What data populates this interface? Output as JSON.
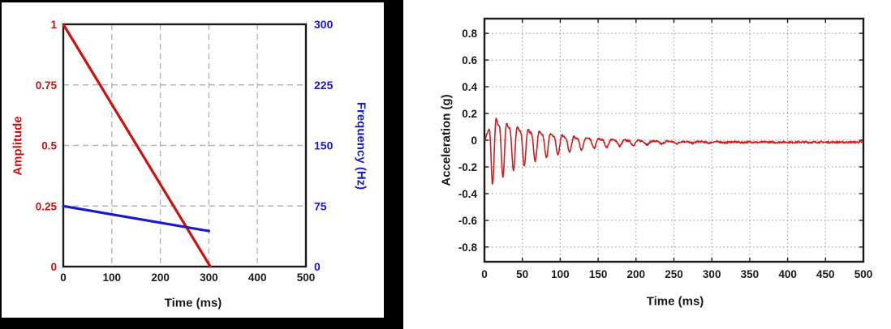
{
  "palette": {
    "frame_black": "#000000",
    "axis_line": "#1a1a1a",
    "tick_text_black": "#1a1a1a",
    "left_grid": "#b5b5b5",
    "right_grid": "#a9a9a9",
    "amplitude_red": "#cc1111",
    "frequency_blue": "#1a1acc",
    "acceleration_red": "#cc2020",
    "white": "#ffffff"
  },
  "chart_data": [
    {
      "type": "line",
      "title": "",
      "xlabel": "Time (ms)",
      "ylabel_left": "Amplitude",
      "ylabel_right": "Frequency (Hz)",
      "xlim": [
        0,
        500
      ],
      "ylim_left": [
        0,
        1
      ],
      "ylim_right": [
        0,
        300
      ],
      "x_ticks": [
        0,
        100,
        200,
        300,
        400,
        500
      ],
      "y_ticks_left": [
        0,
        0.25,
        0.5,
        0.75,
        1
      ],
      "y_ticks_right": [
        0,
        75,
        150,
        225,
        300
      ],
      "grid_x": [
        100,
        200,
        300,
        400
      ],
      "grid_y_left": [
        0.25,
        0.5,
        0.75
      ],
      "grid_style": "dashed",
      "legend": "none",
      "series": [
        {
          "name": "Amplitude",
          "axis": "left",
          "color": "#cc1111",
          "linewidth": 3.2,
          "points": [
            [
              0,
              1.0
            ],
            [
              303,
              0.0
            ]
          ]
        },
        {
          "name": "Frequency (Hz)",
          "axis": "right",
          "color": "#1a1acc",
          "linewidth": 3.2,
          "points": [
            [
              0,
              75
            ],
            [
              300,
              44
            ]
          ]
        }
      ]
    },
    {
      "type": "line",
      "title": "",
      "xlabel": "Time (ms)",
      "ylabel": "Acceleration (g)",
      "xlim": [
        0,
        500
      ],
      "ylim": [
        -0.91,
        0.91
      ],
      "x_ticks": [
        0,
        50,
        100,
        150,
        200,
        250,
        300,
        350,
        400,
        450,
        500
      ],
      "y_ticks": [
        0.8,
        0.6,
        0.4,
        0.2,
        0,
        -0.2,
        -0.4,
        -0.6,
        -0.8
      ],
      "grid_x": [
        50,
        100,
        150,
        200,
        250,
        300,
        350,
        400,
        450
      ],
      "grid_y": [
        0.8,
        0.6,
        0.4,
        0.2,
        0,
        -0.2,
        -0.4,
        -0.6,
        -0.8
      ],
      "grid_style": "dotted",
      "legend": "none",
      "series": [
        {
          "name": "acceleration",
          "color": "#cc2020",
          "linewidth": 1.6,
          "signal": {
            "model": "swept_damped_sine",
            "f_start_hz": 75,
            "f_end_hz": 45,
            "sweep_ms": 300,
            "amp_g": 0.24,
            "ramp_ms": 9,
            "decay_ms": 70,
            "harmonic_ratio": 0.35,
            "harmonic_phase": 1.3,
            "offset_g": -0.015,
            "noise_g": 0.007,
            "t_start_ms": 1,
            "t_end_ms": 500,
            "dt_ms": 0.5,
            "seed": 7
          },
          "peaks_approx": [
            [
              4,
              -0.18
            ],
            [
              9,
              0.27
            ],
            [
              14,
              -0.3
            ],
            [
              22,
              0.15
            ],
            [
              28,
              -0.18
            ],
            [
              33,
              0.16
            ],
            [
              48,
              0.14
            ],
            [
              60,
              0.13
            ],
            [
              75,
              0.1
            ],
            [
              90,
              0.09
            ],
            [
              105,
              0.08
            ],
            [
              120,
              0.06
            ],
            [
              150,
              0.04
            ],
            [
              175,
              0.03
            ],
            [
              200,
              0.02
            ],
            [
              250,
              -0.01
            ],
            [
              300,
              -0.02
            ],
            [
              400,
              -0.02
            ],
            [
              500,
              -0.02
            ]
          ]
        }
      ]
    }
  ]
}
